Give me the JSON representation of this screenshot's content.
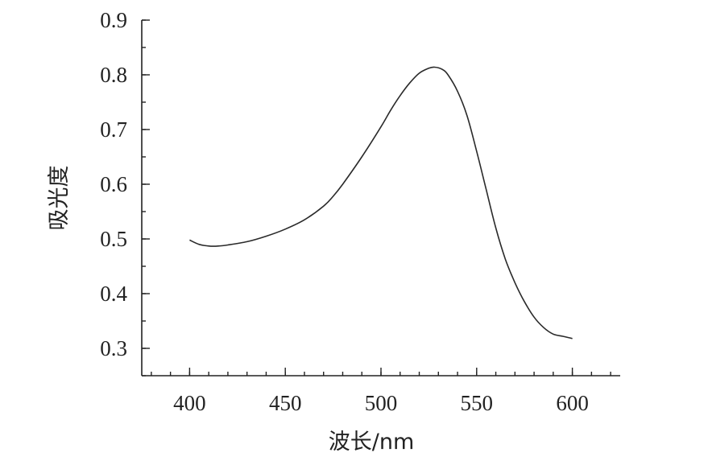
{
  "chart_data": {
    "type": "line",
    "xlabel": "波长/nm",
    "ylabel": "吸光度",
    "xlim": [
      375,
      625
    ],
    "ylim": [
      0.25,
      0.9
    ],
    "x_ticks": [
      400,
      450,
      500,
      550,
      600
    ],
    "x_tick_labels": [
      "400",
      "450",
      "500",
      "550",
      "600"
    ],
    "y_ticks": [
      0.3,
      0.4,
      0.5,
      0.6,
      0.7,
      0.8,
      0.9
    ],
    "y_tick_labels": [
      "0.3",
      "0.4",
      "0.5",
      "0.6",
      "0.7",
      "0.8",
      "0.9"
    ],
    "x_minor_step": 10,
    "y_minor_step": 0.05,
    "grid": false,
    "line_color": "#2a2a2a",
    "series": [
      {
        "x": [
          400,
          405,
          410,
          415,
          420,
          430,
          440,
          450,
          460,
          470,
          475,
          480,
          490,
          500,
          505,
          510,
          515,
          520,
          525,
          528,
          532,
          535,
          540,
          545,
          550,
          555,
          560,
          565,
          570,
          575,
          580,
          585,
          590,
          595,
          600
        ],
        "y": [
          0.498,
          0.49,
          0.487,
          0.487,
          0.489,
          0.495,
          0.505,
          0.518,
          0.535,
          0.56,
          0.578,
          0.6,
          0.65,
          0.705,
          0.735,
          0.762,
          0.785,
          0.803,
          0.812,
          0.814,
          0.81,
          0.8,
          0.77,
          0.725,
          0.66,
          0.59,
          0.52,
          0.463,
          0.42,
          0.385,
          0.357,
          0.338,
          0.326,
          0.322,
          0.318
        ]
      }
    ]
  }
}
